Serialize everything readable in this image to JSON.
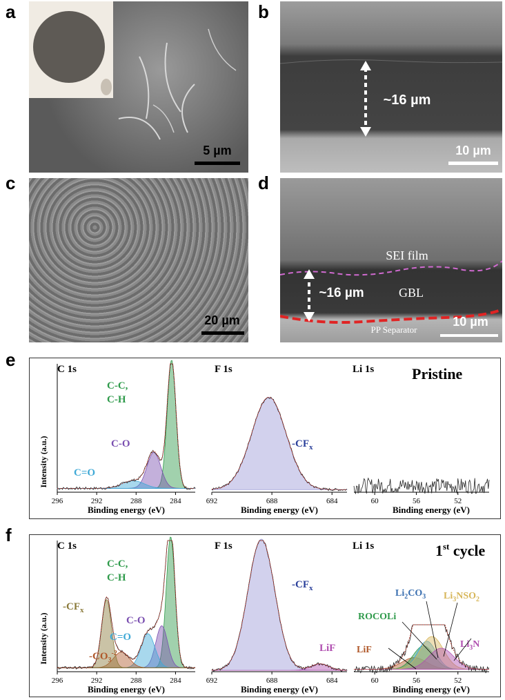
{
  "panels": {
    "a": {
      "label": "a",
      "scale": "5 µm"
    },
    "b": {
      "label": "b",
      "scale": "10 µm",
      "thickness": "~16 µm"
    },
    "c": {
      "label": "c",
      "scale": "20 µm"
    },
    "d": {
      "label": "d",
      "scale": "10 µm",
      "thickness": "~16 µm",
      "sei": "SEI film",
      "gbl": "GBL",
      "sep": "PP Separator"
    },
    "e": {
      "label": "e",
      "state": "Pristine"
    },
    "f": {
      "label": "f",
      "state_main": "1",
      "state_sup": "st",
      "state_tail": " cycle"
    }
  },
  "xps_common": {
    "ylabel": "Intensity (a.u.)",
    "xlabel": "Binding energy (eV)",
    "c1s": "C  1s",
    "f1s": "F 1s",
    "li1s": "Li  1s",
    "c_ticks": [
      "296",
      "292",
      "288",
      "284"
    ],
    "f_ticks": [
      "692",
      "688",
      "684"
    ],
    "li_ticks": [
      "60",
      "56",
      "52"
    ]
  },
  "chart_data": [
    {
      "type": "line",
      "title": "C 1s (Pristine)",
      "xlabel": "Binding energy (eV)",
      "ylabel": "Intensity (a.u.)",
      "xlim": [
        296,
        282
      ],
      "x_reversed": true,
      "peaks": [
        {
          "name": "C-C, C-H",
          "center": 284.4,
          "height": 1.0
        },
        {
          "name": "C-O",
          "center": 286.2,
          "height": 0.28
        },
        {
          "name": "C=O",
          "center": 288.3,
          "height": 0.06
        }
      ],
      "annotations": [
        "C-C,",
        "C-H",
        "C-O",
        "C=O"
      ]
    },
    {
      "type": "line",
      "title": "F 1s (Pristine)",
      "xlabel": "Binding energy (eV)",
      "xlim": [
        692,
        683
      ],
      "x_reversed": true,
      "peaks": [
        {
          "name": "-CFx",
          "center": 688.2,
          "height": 0.72
        }
      ]
    },
    {
      "type": "line",
      "title": "Li 1s (Pristine)",
      "xlabel": "Binding energy (eV)",
      "xlim": [
        62,
        49
      ],
      "x_reversed": true,
      "peaks": []
    },
    {
      "type": "line",
      "title": "C 1s (1st cycle)",
      "xlabel": "Binding energy (eV)",
      "ylabel": "Intensity (a.u.)",
      "xlim": [
        296,
        282
      ],
      "x_reversed": true,
      "peaks": [
        {
          "name": "C-C, C-H",
          "center": 284.5,
          "height": 1.0
        },
        {
          "name": "C-O",
          "center": 285.4,
          "height": 0.32
        },
        {
          "name": "C=O",
          "center": 286.8,
          "height": 0.26
        },
        {
          "name": "-CO3-2",
          "center": 289.5,
          "height": 0.12
        },
        {
          "name": "-CFx",
          "center": 291.0,
          "height": 0.52
        }
      ]
    },
    {
      "type": "line",
      "title": "F 1s (1st cycle)",
      "xlabel": "Binding energy (eV)",
      "xlim": [
        692,
        683
      ],
      "x_reversed": true,
      "peaks": [
        {
          "name": "-CFx",
          "center": 688.7,
          "height": 1.0
        },
        {
          "name": "LiF",
          "center": 684.8,
          "height": 0.05
        }
      ]
    },
    {
      "type": "line",
      "title": "Li 1s (1st cycle)",
      "xlabel": "Binding energy (eV)",
      "xlim": [
        62,
        49
      ],
      "x_reversed": true,
      "peaks": [
        {
          "name": "LiF",
          "center": 56.2,
          "height": 0.25
        },
        {
          "name": "ROCOLi",
          "center": 55.3,
          "height": 0.5
        },
        {
          "name": "Li2CO3",
          "center": 55.0,
          "height": 0.6
        },
        {
          "name": "Li3NSO2",
          "center": 54.5,
          "height": 0.7
        },
        {
          "name": "Li3N",
          "center": 53.6,
          "height": 0.45
        }
      ]
    }
  ],
  "f_labels": {
    "cfx_c": "-CF",
    "cfx_sub": "x",
    "co3": "-CO",
    "co3_sub": "3",
    "co3_sup": "-2",
    "lif": "LiF",
    "rocoli": "ROCOLi",
    "li2co3_a": "Li",
    "li2co3_b": "2",
    "li2co3_c": "CO",
    "li2co3_d": "3",
    "li3nso2_a": "Li",
    "li3nso2_b": "3",
    "li3nso2_c": "NSO",
    "li3nso2_d": "2",
    "li3n_a": "Li",
    "li3n_b": "3",
    "li3n_c": "N"
  },
  "colors": {
    "green": "#2e9a4a",
    "purple": "#7a4fb0",
    "cyan": "#3fa9d6",
    "blue": "#2a3f9a",
    "olive": "#8a7a3a",
    "brown": "#b0582a",
    "magenta": "#b04fb0",
    "orange": "#d7b65a",
    "fit": "#c0392b"
  }
}
